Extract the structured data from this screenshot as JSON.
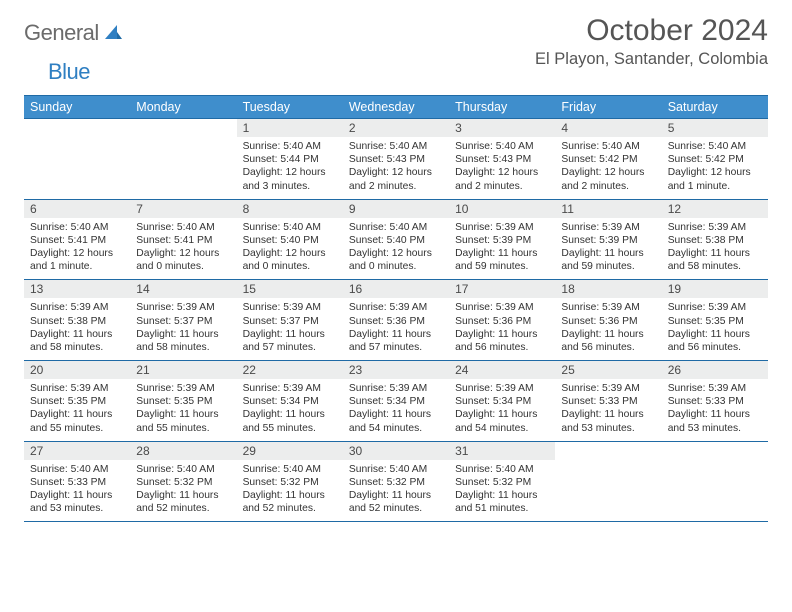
{
  "logo": {
    "text_a": "General",
    "text_b": "Blue"
  },
  "header": {
    "month": "October 2024",
    "location": "El Playon, Santander, Colombia"
  },
  "colors": {
    "header_bg": "#3f8ecc",
    "header_text": "#ffffff",
    "rule": "#1f6aa5",
    "daynum_bg": "#eceded",
    "body_text": "#333333",
    "logo_gray": "#6b6b6b",
    "logo_blue": "#2f7fc2"
  },
  "daysOfWeek": [
    "Sunday",
    "Monday",
    "Tuesday",
    "Wednesday",
    "Thursday",
    "Friday",
    "Saturday"
  ],
  "weeks": [
    [
      {
        "n": "",
        "sr": "",
        "ss": "",
        "dl": ""
      },
      {
        "n": "",
        "sr": "",
        "ss": "",
        "dl": ""
      },
      {
        "n": "1",
        "sr": "Sunrise: 5:40 AM",
        "ss": "Sunset: 5:44 PM",
        "dl": "Daylight: 12 hours and 3 minutes."
      },
      {
        "n": "2",
        "sr": "Sunrise: 5:40 AM",
        "ss": "Sunset: 5:43 PM",
        "dl": "Daylight: 12 hours and 2 minutes."
      },
      {
        "n": "3",
        "sr": "Sunrise: 5:40 AM",
        "ss": "Sunset: 5:43 PM",
        "dl": "Daylight: 12 hours and 2 minutes."
      },
      {
        "n": "4",
        "sr": "Sunrise: 5:40 AM",
        "ss": "Sunset: 5:42 PM",
        "dl": "Daylight: 12 hours and 2 minutes."
      },
      {
        "n": "5",
        "sr": "Sunrise: 5:40 AM",
        "ss": "Sunset: 5:42 PM",
        "dl": "Daylight: 12 hours and 1 minute."
      }
    ],
    [
      {
        "n": "6",
        "sr": "Sunrise: 5:40 AM",
        "ss": "Sunset: 5:41 PM",
        "dl": "Daylight: 12 hours and 1 minute."
      },
      {
        "n": "7",
        "sr": "Sunrise: 5:40 AM",
        "ss": "Sunset: 5:41 PM",
        "dl": "Daylight: 12 hours and 0 minutes."
      },
      {
        "n": "8",
        "sr": "Sunrise: 5:40 AM",
        "ss": "Sunset: 5:40 PM",
        "dl": "Daylight: 12 hours and 0 minutes."
      },
      {
        "n": "9",
        "sr": "Sunrise: 5:40 AM",
        "ss": "Sunset: 5:40 PM",
        "dl": "Daylight: 12 hours and 0 minutes."
      },
      {
        "n": "10",
        "sr": "Sunrise: 5:39 AM",
        "ss": "Sunset: 5:39 PM",
        "dl": "Daylight: 11 hours and 59 minutes."
      },
      {
        "n": "11",
        "sr": "Sunrise: 5:39 AM",
        "ss": "Sunset: 5:39 PM",
        "dl": "Daylight: 11 hours and 59 minutes."
      },
      {
        "n": "12",
        "sr": "Sunrise: 5:39 AM",
        "ss": "Sunset: 5:38 PM",
        "dl": "Daylight: 11 hours and 58 minutes."
      }
    ],
    [
      {
        "n": "13",
        "sr": "Sunrise: 5:39 AM",
        "ss": "Sunset: 5:38 PM",
        "dl": "Daylight: 11 hours and 58 minutes."
      },
      {
        "n": "14",
        "sr": "Sunrise: 5:39 AM",
        "ss": "Sunset: 5:37 PM",
        "dl": "Daylight: 11 hours and 58 minutes."
      },
      {
        "n": "15",
        "sr": "Sunrise: 5:39 AM",
        "ss": "Sunset: 5:37 PM",
        "dl": "Daylight: 11 hours and 57 minutes."
      },
      {
        "n": "16",
        "sr": "Sunrise: 5:39 AM",
        "ss": "Sunset: 5:36 PM",
        "dl": "Daylight: 11 hours and 57 minutes."
      },
      {
        "n": "17",
        "sr": "Sunrise: 5:39 AM",
        "ss": "Sunset: 5:36 PM",
        "dl": "Daylight: 11 hours and 56 minutes."
      },
      {
        "n": "18",
        "sr": "Sunrise: 5:39 AM",
        "ss": "Sunset: 5:36 PM",
        "dl": "Daylight: 11 hours and 56 minutes."
      },
      {
        "n": "19",
        "sr": "Sunrise: 5:39 AM",
        "ss": "Sunset: 5:35 PM",
        "dl": "Daylight: 11 hours and 56 minutes."
      }
    ],
    [
      {
        "n": "20",
        "sr": "Sunrise: 5:39 AM",
        "ss": "Sunset: 5:35 PM",
        "dl": "Daylight: 11 hours and 55 minutes."
      },
      {
        "n": "21",
        "sr": "Sunrise: 5:39 AM",
        "ss": "Sunset: 5:35 PM",
        "dl": "Daylight: 11 hours and 55 minutes."
      },
      {
        "n": "22",
        "sr": "Sunrise: 5:39 AM",
        "ss": "Sunset: 5:34 PM",
        "dl": "Daylight: 11 hours and 55 minutes."
      },
      {
        "n": "23",
        "sr": "Sunrise: 5:39 AM",
        "ss": "Sunset: 5:34 PM",
        "dl": "Daylight: 11 hours and 54 minutes."
      },
      {
        "n": "24",
        "sr": "Sunrise: 5:39 AM",
        "ss": "Sunset: 5:34 PM",
        "dl": "Daylight: 11 hours and 54 minutes."
      },
      {
        "n": "25",
        "sr": "Sunrise: 5:39 AM",
        "ss": "Sunset: 5:33 PM",
        "dl": "Daylight: 11 hours and 53 minutes."
      },
      {
        "n": "26",
        "sr": "Sunrise: 5:39 AM",
        "ss": "Sunset: 5:33 PM",
        "dl": "Daylight: 11 hours and 53 minutes."
      }
    ],
    [
      {
        "n": "27",
        "sr": "Sunrise: 5:40 AM",
        "ss": "Sunset: 5:33 PM",
        "dl": "Daylight: 11 hours and 53 minutes."
      },
      {
        "n": "28",
        "sr": "Sunrise: 5:40 AM",
        "ss": "Sunset: 5:32 PM",
        "dl": "Daylight: 11 hours and 52 minutes."
      },
      {
        "n": "29",
        "sr": "Sunrise: 5:40 AM",
        "ss": "Sunset: 5:32 PM",
        "dl": "Daylight: 11 hours and 52 minutes."
      },
      {
        "n": "30",
        "sr": "Sunrise: 5:40 AM",
        "ss": "Sunset: 5:32 PM",
        "dl": "Daylight: 11 hours and 52 minutes."
      },
      {
        "n": "31",
        "sr": "Sunrise: 5:40 AM",
        "ss": "Sunset: 5:32 PM",
        "dl": "Daylight: 11 hours and 51 minutes."
      },
      {
        "n": "",
        "sr": "",
        "ss": "",
        "dl": ""
      },
      {
        "n": "",
        "sr": "",
        "ss": "",
        "dl": ""
      }
    ]
  ]
}
